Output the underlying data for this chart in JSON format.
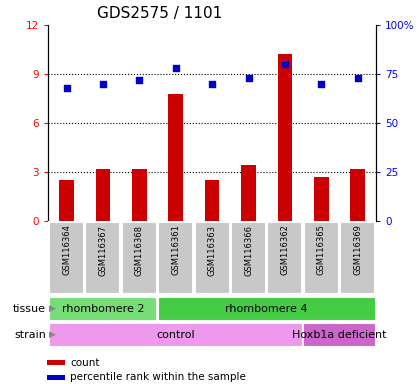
{
  "title": "GDS2575 / 1101",
  "samples": [
    "GSM116364",
    "GSM116367",
    "GSM116368",
    "GSM116361",
    "GSM116363",
    "GSM116366",
    "GSM116362",
    "GSM116365",
    "GSM116369"
  ],
  "counts": [
    2.5,
    3.2,
    3.2,
    7.8,
    2.5,
    3.4,
    10.2,
    2.7,
    3.2
  ],
  "percentile_ranks": [
    68,
    70,
    72,
    78,
    70,
    73,
    80,
    70,
    73
  ],
  "ylim_left": [
    0,
    12
  ],
  "ylim_right": [
    0,
    100
  ],
  "yticks_left": [
    0,
    3,
    6,
    9,
    12
  ],
  "ytick_labels_left": [
    "0",
    "3",
    "6",
    "9",
    "12"
  ],
  "yticks_right": [
    0,
    25,
    50,
    75,
    100
  ],
  "ytick_labels_right": [
    "0",
    "25",
    "50",
    "75",
    "100%"
  ],
  "bar_color": "#cc0000",
  "dot_color": "#0000cc",
  "bg_color": "#ffffff",
  "tick_bg_color": "#c8c8c8",
  "tissue_groups": [
    {
      "label": "rhombomere 2",
      "start": 0,
      "end": 3,
      "color": "#77dd77"
    },
    {
      "label": "rhombomere 4",
      "start": 3,
      "end": 9,
      "color": "#44cc44"
    }
  ],
  "strain_groups": [
    {
      "label": "control",
      "start": 0,
      "end": 7,
      "color": "#ee99ee"
    },
    {
      "label": "Hoxb1a deficient",
      "start": 7,
      "end": 9,
      "color": "#cc66cc"
    }
  ],
  "tissue_label": "tissue",
  "strain_label": "strain",
  "legend_count_label": "count",
  "legend_pct_label": "percentile rank within the sample",
  "title_fontsize": 11,
  "tick_fontsize": 7.5,
  "label_fontsize": 8,
  "grid_ticks": [
    3,
    6,
    9
  ]
}
